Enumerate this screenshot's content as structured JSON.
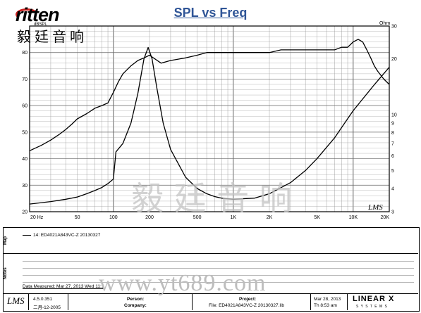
{
  "brand": {
    "logo_text": "ritten",
    "logo_chinese": "毅廷音响"
  },
  "watermarks": {
    "chinese": "毅 廷 音 响",
    "url": "www.yt689.com",
    "lms": "LMS"
  },
  "colors": {
    "title": "#2f5597",
    "curves": "#000000",
    "grid": "#9a9a9a",
    "logo_accent": "#c8201e"
  },
  "chart_data": {
    "type": "line",
    "title": "SPL vs Freq",
    "x_scale": "log",
    "xlim": [
      20,
      20000
    ],
    "x_tick_labels": [
      "20 Hz",
      "50",
      "100",
      "200",
      "500",
      "1K",
      "2K",
      "5K",
      "10K",
      "20K"
    ],
    "x_tick_values": [
      20,
      50,
      100,
      200,
      500,
      1000,
      2000,
      5000,
      10000,
      20000
    ],
    "y_left": {
      "label": "dBSPL",
      "lim": [
        20,
        90
      ],
      "ticks": [
        20,
        30,
        40,
        50,
        60,
        70,
        80
      ]
    },
    "y_right": {
      "label": "Ohm",
      "scale": "log",
      "lim": [
        3,
        30
      ],
      "ticks": [
        3,
        4,
        5,
        6,
        7,
        8,
        9,
        10,
        20,
        30
      ]
    },
    "grid": true,
    "series": [
      {
        "axis": "left",
        "x": [
          20,
          25,
          30,
          35,
          40,
          45,
          50,
          60,
          70,
          80,
          90,
          100,
          110,
          120,
          140,
          160,
          180,
          200,
          250,
          300,
          400,
          500,
          600,
          700,
          800,
          1000,
          1200,
          1500,
          2000,
          2500,
          3000,
          4000,
          5000,
          6000,
          7000,
          8000,
          9000,
          10000,
          11000,
          12000,
          13000,
          14000,
          15000,
          16000,
          18000,
          20000
        ],
        "y": [
          43,
          45,
          47,
          49,
          51,
          53,
          55,
          57,
          59,
          60,
          61,
          65,
          69,
          72,
          75,
          77,
          78,
          79,
          76,
          77,
          78,
          79,
          80,
          80,
          80,
          80,
          80,
          80,
          80,
          81,
          81,
          81,
          81,
          81,
          81,
          82,
          82,
          84,
          85,
          84,
          81,
          78,
          75,
          73,
          70,
          68
        ]
      },
      {
        "axis": "right",
        "x": [
          20,
          30,
          40,
          50,
          60,
          70,
          80,
          90,
          100,
          105,
          120,
          140,
          160,
          180,
          195,
          210,
          230,
          260,
          300,
          400,
          500,
          600,
          700,
          800,
          1000,
          1500,
          2000,
          3000,
          4000,
          5000,
          7000,
          10000,
          15000,
          20000
        ],
        "y": [
          3.3,
          3.4,
          3.5,
          3.6,
          3.75,
          3.9,
          4.05,
          4.25,
          4.5,
          6.3,
          7.0,
          9.0,
          13.0,
          20.0,
          23.0,
          20.0,
          14.0,
          9.0,
          6.5,
          4.6,
          4.0,
          3.75,
          3.62,
          3.55,
          3.5,
          3.55,
          3.75,
          4.3,
          5.0,
          5.8,
          7.5,
          10.5,
          14.5,
          18.0
        ]
      }
    ]
  },
  "map_panel": {
    "label": "Map",
    "legend": "14: ED4021A843VC-Z  20130327"
  },
  "notes_panel": {
    "label": "Notes"
  },
  "footer": {
    "date_measured": "Data Measured: Mar 27, 2013  Wed 11:1",
    "version": "4.5.0.351",
    "build": "二月-12-2005",
    "person_label": "Person:",
    "company_label": "Company:",
    "project_label": "Project:",
    "file_label": "File: ED4021A843VC-Z  20130327.lib",
    "date": "Mar 28, 2013",
    "time": "Th  8:53 am",
    "brand": "LINEAR X",
    "brand_sub": "S Y S T E M S"
  }
}
